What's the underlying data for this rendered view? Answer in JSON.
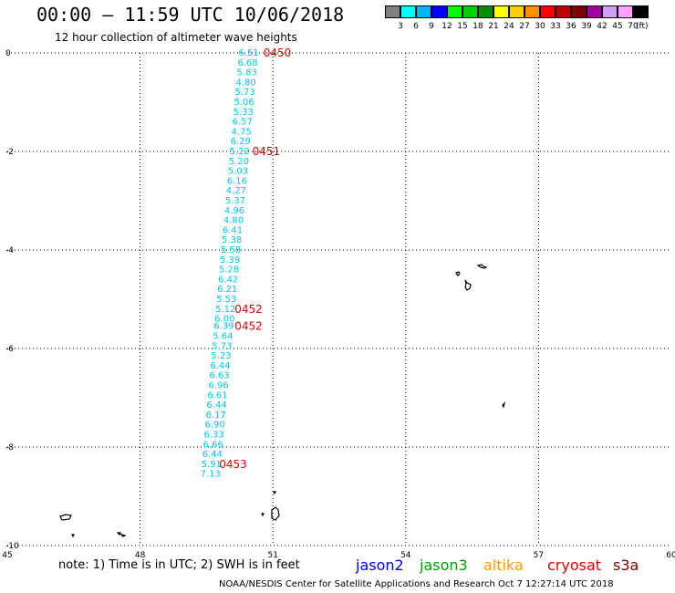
{
  "header": {
    "title": "00:00 – 11:59 UTC 10/06/2018",
    "subtitle": "12 hour collection of altimeter wave heights"
  },
  "colorbar": {
    "colors": [
      "#808080",
      "#00ffff",
      "#00b4ff",
      "#0000ff",
      "#00ff00",
      "#00d000",
      "#009000",
      "#ffff00",
      "#ffd000",
      "#ff9000",
      "#ff0000",
      "#c00000",
      "#800000",
      "#a000a0",
      "#d0a0ff",
      "#ffa0ff",
      "#000000"
    ],
    "labels": [
      "3",
      "6",
      "9",
      "12",
      "15",
      "18",
      "21",
      "24",
      "27",
      "30",
      "33",
      "36",
      "39",
      "42",
      "45",
      "70"
    ],
    "unit": "(ft)"
  },
  "axes": {
    "y_ticks": [
      "0",
      "-2",
      "-4",
      "-6",
      "-8",
      "-10"
    ],
    "x_ticks": [
      "45",
      "48",
      "51",
      "54",
      "57",
      "60"
    ]
  },
  "map": {
    "lon_range": [
      45,
      60
    ],
    "lat_range": [
      -10,
      0
    ],
    "grid_values_lon": [
      48,
      51,
      54,
      57
    ],
    "grid_values_lat": [
      -2,
      -4,
      -6,
      -8
    ]
  },
  "track": {
    "color": "#00c8e6",
    "points": [
      {
        "lon": 50.45,
        "lat": 0.0,
        "v": "6.51"
      },
      {
        "lon": 50.43,
        "lat": -0.2,
        "v": "6.68"
      },
      {
        "lon": 50.41,
        "lat": -0.4,
        "v": "5.83"
      },
      {
        "lon": 50.39,
        "lat": -0.6,
        "v": "4.80"
      },
      {
        "lon": 50.37,
        "lat": -0.8,
        "v": "5.73"
      },
      {
        "lon": 50.35,
        "lat": -1.0,
        "v": "5.06"
      },
      {
        "lon": 50.33,
        "lat": -1.2,
        "v": "5.33"
      },
      {
        "lon": 50.31,
        "lat": -1.4,
        "v": "6.57"
      },
      {
        "lon": 50.29,
        "lat": -1.6,
        "v": "4.75"
      },
      {
        "lon": 50.27,
        "lat": -1.8,
        "v": "6.29"
      },
      {
        "lon": 50.25,
        "lat": -2.0,
        "v": "5.22"
      },
      {
        "lon": 50.23,
        "lat": -2.2,
        "v": "5.20"
      },
      {
        "lon": 50.21,
        "lat": -2.4,
        "v": "5.03"
      },
      {
        "lon": 50.19,
        "lat": -2.6,
        "v": "6.16"
      },
      {
        "lon": 50.17,
        "lat": -2.8,
        "v": "4.27"
      },
      {
        "lon": 50.15,
        "lat": -3.0,
        "v": "5.37"
      },
      {
        "lon": 50.13,
        "lat": -3.2,
        "v": "4.96"
      },
      {
        "lon": 50.11,
        "lat": -3.4,
        "v": "4.80"
      },
      {
        "lon": 50.09,
        "lat": -3.6,
        "v": "6.41"
      },
      {
        "lon": 50.07,
        "lat": -3.8,
        "v": "5.38"
      },
      {
        "lon": 50.05,
        "lat": -4.0,
        "v": "5.58"
      },
      {
        "lon": 50.03,
        "lat": -4.2,
        "v": "5.39"
      },
      {
        "lon": 50.01,
        "lat": -4.4,
        "v": "5.28"
      },
      {
        "lon": 49.99,
        "lat": -4.6,
        "v": "6.42"
      },
      {
        "lon": 49.97,
        "lat": -4.8,
        "v": "6.21"
      },
      {
        "lon": 49.95,
        "lat": -5.0,
        "v": "5.53"
      },
      {
        "lon": 49.93,
        "lat": -5.2,
        "v": "5.12"
      },
      {
        "lon": 49.91,
        "lat": -5.4,
        "v": "6.00"
      },
      {
        "lon": 49.89,
        "lat": -5.55,
        "v": "6.39"
      },
      {
        "lon": 49.87,
        "lat": -5.75,
        "v": "5.64"
      },
      {
        "lon": 49.85,
        "lat": -5.95,
        "v": "5.73"
      },
      {
        "lon": 49.83,
        "lat": -6.15,
        "v": "5.23"
      },
      {
        "lon": 49.81,
        "lat": -6.35,
        "v": "6.44"
      },
      {
        "lon": 49.79,
        "lat": -6.55,
        "v": "6.63"
      },
      {
        "lon": 49.77,
        "lat": -6.75,
        "v": "6.96"
      },
      {
        "lon": 49.75,
        "lat": -6.95,
        "v": "6.61"
      },
      {
        "lon": 49.73,
        "lat": -7.15,
        "v": "6.44"
      },
      {
        "lon": 49.71,
        "lat": -7.35,
        "v": "6.17"
      },
      {
        "lon": 49.69,
        "lat": -7.55,
        "v": "6.90"
      },
      {
        "lon": 49.67,
        "lat": -7.75,
        "v": "6.33"
      },
      {
        "lon": 49.65,
        "lat": -7.95,
        "v": "6.66"
      },
      {
        "lon": 49.63,
        "lat": -8.15,
        "v": "6.44"
      },
      {
        "lon": 49.61,
        "lat": -8.35,
        "v": "5.91"
      },
      {
        "lon": 49.59,
        "lat": -8.55,
        "v": "7.13"
      }
    ]
  },
  "time_labels": {
    "color": "#e00000",
    "items": [
      {
        "lon": 51.1,
        "lat": 0.0,
        "text": "0450"
      },
      {
        "lon": 50.85,
        "lat": -2.0,
        "text": "0451"
      },
      {
        "lon": 50.45,
        "lat": -5.2,
        "text": "0452"
      },
      {
        "lon": 50.45,
        "lat": -5.55,
        "text": "0452"
      },
      {
        "lon": 50.1,
        "lat": -8.35,
        "text": "0453"
      }
    ]
  },
  "note": "note:  1) Time is in UTC;  2) SWH is in feet",
  "satellites": [
    {
      "name": "jason2",
      "color": "#0000e0"
    },
    {
      "name": "jason3",
      "color": "#00a000"
    },
    {
      "name": "altika",
      "color": "#ff9900"
    },
    {
      "name": "cryosat",
      "color": "#e00000"
    },
    {
      "name": "s3a",
      "color": "#800000"
    }
  ],
  "footer": "NOAA/NESDIS Center for Satellite Applications and Research    Oct  7 12:27:14 UTC 2018"
}
